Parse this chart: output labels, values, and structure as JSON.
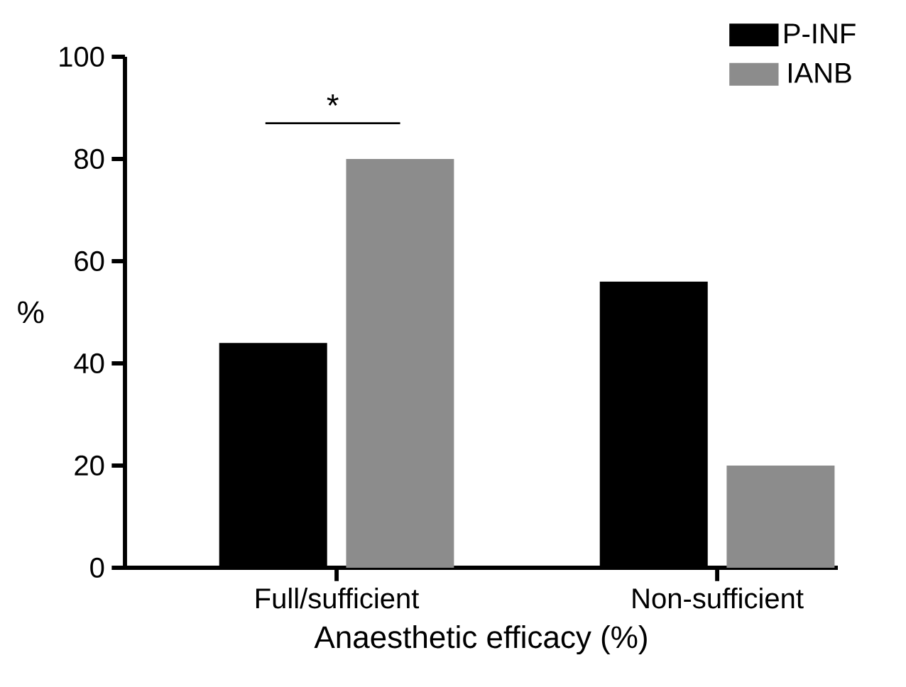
{
  "chart_data": {
    "type": "bar",
    "xlabel": "Anaesthetic efficacy (%)",
    "ylabel": "%",
    "categories": [
      "Full/sufficient",
      "Non-sufficient"
    ],
    "series": [
      {
        "name": "P-INF",
        "color": "#000000",
        "values": [
          44,
          56
        ]
      },
      {
        "name": "IANB",
        "color": "#8c8c8c",
        "values": [
          80,
          20
        ]
      }
    ],
    "ylim": [
      0,
      100
    ],
    "yticks": [
      0,
      20,
      40,
      60,
      80,
      100
    ],
    "grid": false,
    "legend": "top right",
    "annotations": [
      "*"
    ]
  }
}
